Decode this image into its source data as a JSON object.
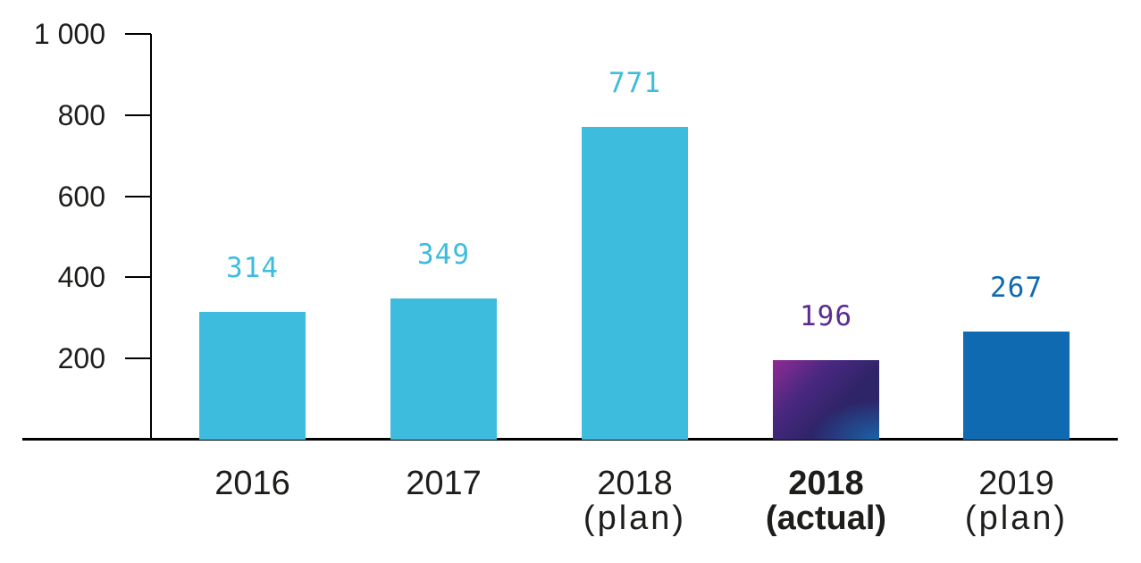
{
  "chart_data": {
    "type": "bar",
    "title": "",
    "xlabel": "",
    "ylabel": "",
    "ylim": [
      0,
      1000
    ],
    "grid": false,
    "legend": false,
    "y_ticks": [
      {
        "label": "1 000",
        "value": 1000
      },
      {
        "label": "800",
        "value": 800
      },
      {
        "label": "600",
        "value": 600
      },
      {
        "label": "400",
        "value": 400
      },
      {
        "label": "200",
        "value": 200
      }
    ],
    "categories": [
      "2016",
      "2017",
      "2018 (plan)",
      "2018 (actual)",
      "2019 (plan)"
    ],
    "values": [
      314,
      349,
      771,
      196,
      267
    ],
    "bars": [
      {
        "line1": "2016",
        "line2": "",
        "value": 314,
        "label": "314",
        "color": "#3EBCDE",
        "label_color": "#3EBCDE",
        "emphasis": false
      },
      {
        "line1": "2017",
        "line2": "",
        "value": 349,
        "label": "349",
        "color": "#3EBCDE",
        "label_color": "#3EBCDE",
        "emphasis": false
      },
      {
        "line1": "2018",
        "line2": "(plan)",
        "value": 771,
        "label": "771",
        "color": "#3EBCDE",
        "label_color": "#3EBCDE",
        "emphasis": false
      },
      {
        "line1": "2018",
        "line2": "(actual)",
        "value": 196,
        "label": "196",
        "color": "gradient",
        "gradient": {
          "from": "#8E2B93",
          "mid": "#2E2468",
          "to": "#1969AE",
          "end": "#2B2767"
        },
        "label_color": "#5D2C90",
        "emphasis": true
      },
      {
        "line1": "2019",
        "line2": "(plan)",
        "value": 267,
        "label": "267",
        "color": "#0F6AB2",
        "label_color": "#0F6AB2",
        "emphasis": false
      }
    ],
    "colors": {
      "light_blue": "#3EBCDE",
      "dark_blue": "#0F6AB2",
      "purple": "#5D2C90",
      "axis": "#000000",
      "text": "#1D1D1B",
      "background": "#FFFFFF"
    }
  }
}
